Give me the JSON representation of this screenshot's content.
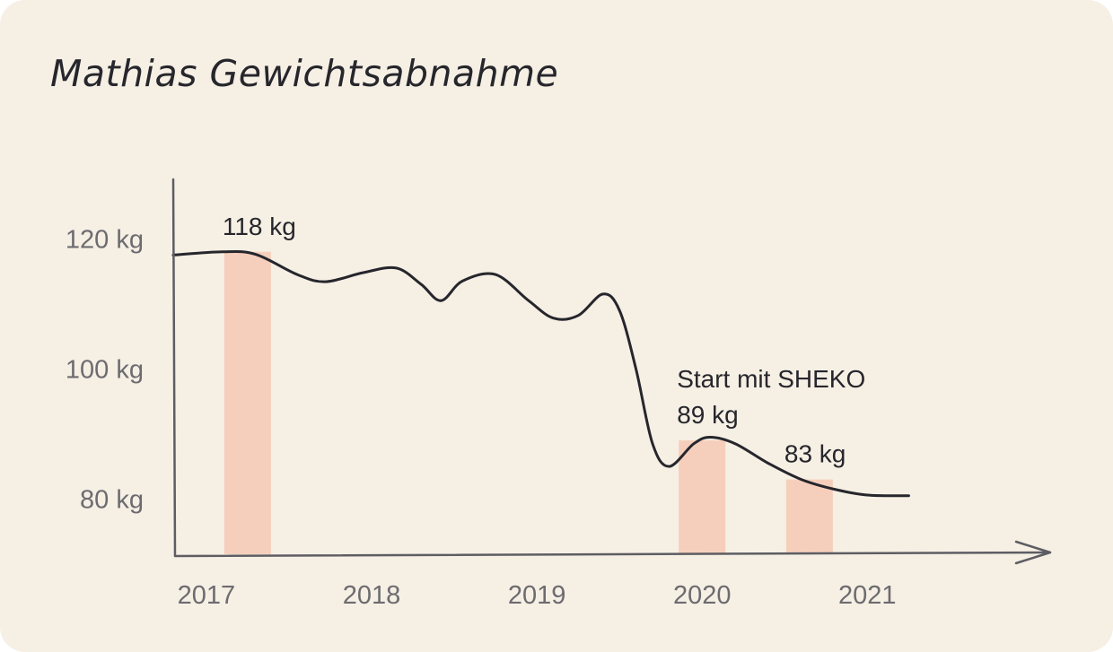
{
  "chart_data": {
    "type": "bar",
    "title": "Mathias Gewichtsabnahme",
    "x_ticks": [
      "2017",
      "2018",
      "2019",
      "2020",
      "2021"
    ],
    "y_ticks": [
      {
        "value": 120,
        "label": "120 kg"
      },
      {
        "value": 100,
        "label": "100 kg"
      },
      {
        "value": 80,
        "label": "80 kg"
      }
    ],
    "ylim": [
      71.5,
      125
    ],
    "xlim": [
      2016.8,
      2021.65
    ],
    "bars": [
      {
        "x": 2017.25,
        "value": 118,
        "label": "118 kg"
      },
      {
        "x": 2020.0,
        "value": 89,
        "label": "89 kg",
        "annotation": "Start mit SHEKO"
      },
      {
        "x": 2020.65,
        "value": 83,
        "label": "83 kg"
      }
    ],
    "line": {
      "x": [
        2016.8,
        2017.1,
        2017.3,
        2017.55,
        2017.72,
        2017.95,
        2018.15,
        2018.3,
        2018.42,
        2018.55,
        2018.75,
        2018.95,
        2019.1,
        2019.25,
        2019.4,
        2019.5,
        2019.6,
        2019.7,
        2019.8,
        2019.95,
        2020.05,
        2020.2,
        2020.4,
        2020.6,
        2020.8,
        2021.0,
        2021.25
      ],
      "y": [
        117.5,
        118,
        117.6,
        114.5,
        113.4,
        114.8,
        115.5,
        113,
        110.5,
        113.5,
        114.5,
        110.5,
        107.8,
        108.2,
        111.5,
        109,
        100,
        88.5,
        85,
        88.5,
        89.5,
        88.5,
        85.5,
        83,
        81.5,
        80.6,
        80.5
      ]
    },
    "axis_color": "#5d5d63",
    "bar_color": "#f6cfbc",
    "line_color": "#26262c",
    "background": "#f6efe4"
  }
}
